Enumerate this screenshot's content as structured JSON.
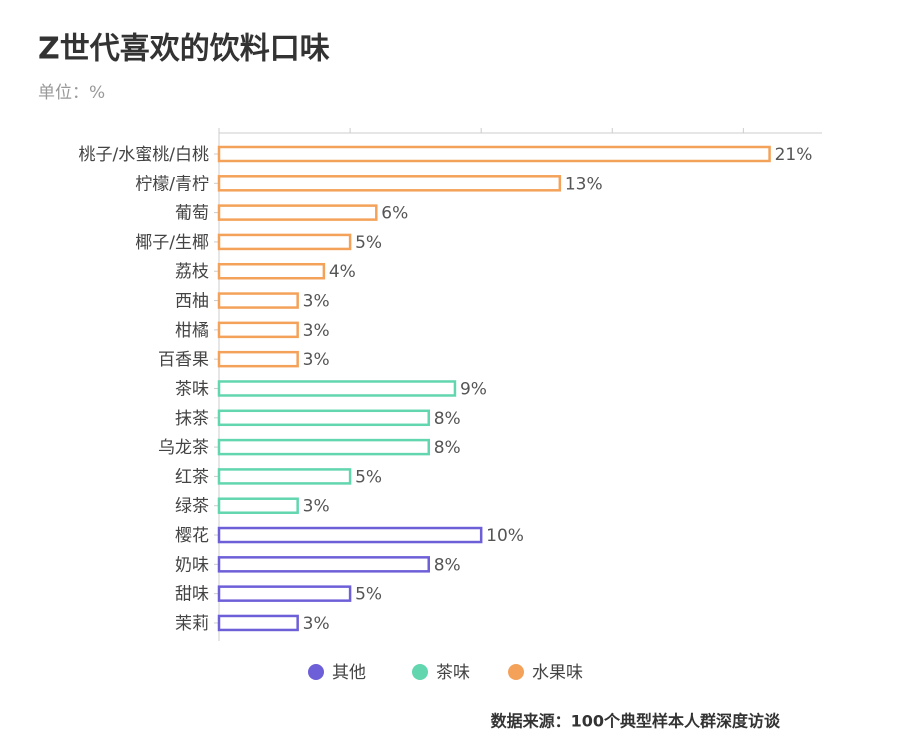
{
  "chart_data": {
    "type": "bar",
    "orientation": "horizontal",
    "title": "Z世代喜欢的饮料口味",
    "subtitle": "单位：%",
    "source": "数据来源：100个典型样本人群深度访谈",
    "categories": [
      "桃子/水蜜桃/白桃",
      "柠檬/青柠",
      "葡萄",
      "椰子/生椰",
      "荔枝",
      "西柚",
      "柑橘",
      "百香果",
      "茶味",
      "抹茶",
      "乌龙茶",
      "红茶",
      "绿茶",
      "樱花",
      "奶味",
      "甜味",
      "茉莉"
    ],
    "series": [
      {
        "name": "其他",
        "color": "#6d5fd8",
        "values": [
          null,
          null,
          null,
          null,
          null,
          null,
          null,
          null,
          null,
          null,
          null,
          null,
          null,
          10,
          8,
          5,
          3
        ],
        "value_labels": [
          null,
          null,
          null,
          null,
          null,
          null,
          null,
          null,
          null,
          null,
          null,
          null,
          null,
          "10%",
          "8%",
          "5%",
          "3%"
        ]
      },
      {
        "name": "茶味",
        "color": "#62d6ae",
        "values": [
          null,
          null,
          null,
          null,
          null,
          null,
          null,
          null,
          9,
          8,
          8,
          5,
          3,
          null,
          null,
          null,
          null
        ],
        "value_labels": [
          null,
          null,
          null,
          null,
          null,
          null,
          null,
          null,
          "9%",
          "8%",
          "8%",
          "5%",
          "3%",
          null,
          null,
          null,
          null
        ]
      },
      {
        "name": "水果味",
        "color": "#f4a25a",
        "values": [
          21,
          13,
          6,
          5,
          4,
          3,
          3,
          3,
          null,
          null,
          null,
          null,
          null,
          null,
          null,
          null,
          null
        ],
        "value_labels": [
          "21%",
          "13%",
          "6%",
          "5%",
          "4%",
          "3%",
          "3%",
          "3%",
          null,
          null,
          null,
          null,
          null,
          null,
          null,
          null,
          null
        ]
      }
    ],
    "xlim": [
      0,
      23
    ],
    "xticks": [
      0,
      5,
      10,
      15,
      20
    ],
    "legend": "bottom"
  }
}
